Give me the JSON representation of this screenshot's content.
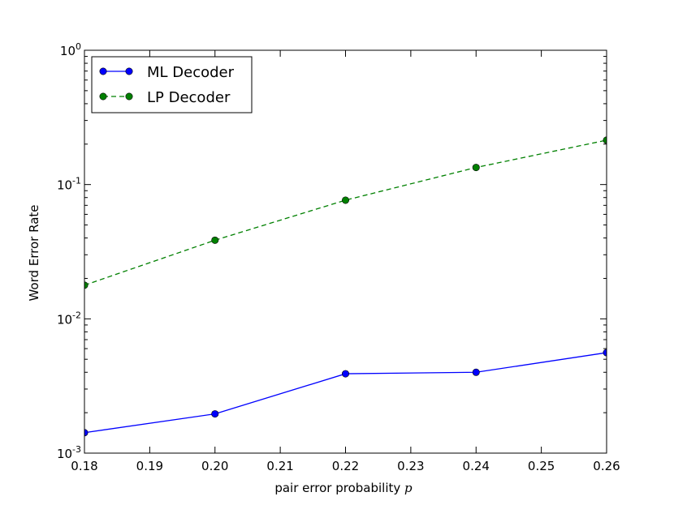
{
  "chart_data": {
    "type": "line",
    "x_scale": "linear",
    "y_scale": "log",
    "xlim": [
      0.18,
      0.26
    ],
    "ylim": [
      0.001,
      1
    ],
    "x_ticks": [
      "0.18",
      "0.19",
      "0.20",
      "0.21",
      "0.22",
      "0.23",
      "0.24",
      "0.25",
      "0.26"
    ],
    "y_ticks": [
      {
        "base": "10",
        "exp": "0"
      },
      {
        "base": "10",
        "exp": "-1"
      },
      {
        "base": "10",
        "exp": "-2"
      },
      {
        "base": "10",
        "exp": "-3"
      }
    ],
    "xlabel_text": "pair error probability",
    "xlabel_var": "p",
    "ylabel": "Word Error Rate",
    "legend_position": "upper-left",
    "grid": false,
    "series": [
      {
        "name": "ML Decoder",
        "color": "#0000ff",
        "marker_color": "#0000ff",
        "line_style": "solid",
        "x": [
          0.18,
          0.2,
          0.22,
          0.24,
          0.26
        ],
        "y": [
          0.00142,
          0.00196,
          0.0039,
          0.004,
          0.0056
        ]
      },
      {
        "name": "LP Decoder",
        "color": "#008000",
        "marker_color": "#008000",
        "line_style": "dashed",
        "x": [
          0.18,
          0.2,
          0.22,
          0.24,
          0.26
        ],
        "y": [
          0.0178,
          0.0385,
          0.0765,
          0.134,
          0.214
        ]
      }
    ]
  }
}
